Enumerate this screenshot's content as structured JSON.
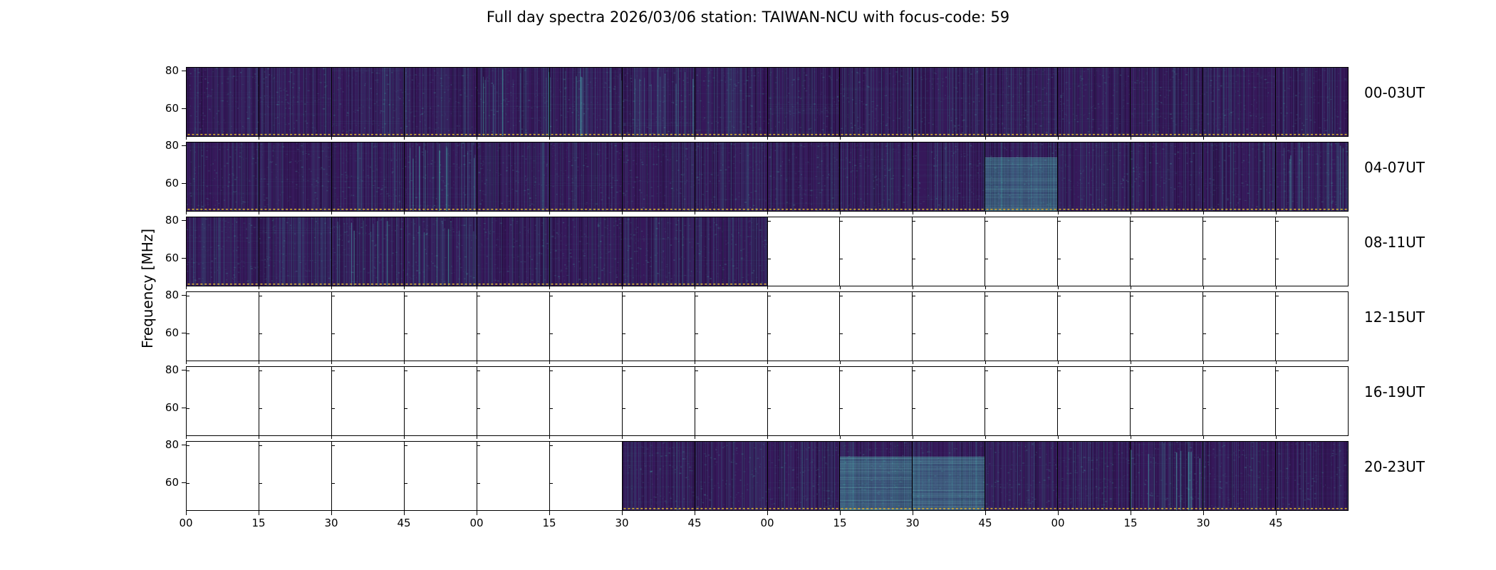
{
  "chart_data": {
    "type": "heatmap",
    "title": "Full day spectra 2026/03/06 station: TAIWAN-NCU with focus-code: 59",
    "ylabel": "Frequency [MHz]",
    "y_tick_labels": [
      "80",
      "60"
    ],
    "y_range_mhz": [
      45,
      82
    ],
    "x_tick_labels": [
      "00",
      "15",
      "30",
      "45",
      "00",
      "15",
      "30",
      "45",
      "00",
      "15",
      "30",
      "45",
      "00",
      "15",
      "30",
      "45"
    ],
    "panels_per_row": 16,
    "minutes_per_panel": 15,
    "colormap": "viridis",
    "colors": {
      "background": "#36185a",
      "activity": "#34a59e",
      "baseline_dots": "#e6bb2b",
      "empty": "#ffffff",
      "axis": "#000000"
    },
    "rows": [
      {
        "label": "00-03UT",
        "data_start": 0,
        "data_end": 16,
        "streak_panels": [
          4,
          5,
          6
        ],
        "block_panels": []
      },
      {
        "label": "04-07UT",
        "data_start": 0,
        "data_end": 16,
        "streak_panels": [
          3,
          15
        ],
        "block_panels": [
          11
        ]
      },
      {
        "label": "08-11UT",
        "data_start": 0,
        "data_end": 8,
        "streak_panels": [
          2,
          3
        ],
        "block_panels": []
      },
      {
        "label": "12-15UT",
        "data_start": 0,
        "data_end": 0,
        "streak_panels": [],
        "block_panels": []
      },
      {
        "label": "16-19UT",
        "data_start": 0,
        "data_end": 0,
        "streak_panels": [],
        "block_panels": []
      },
      {
        "label": "20-23UT",
        "data_start": 6,
        "data_end": 16,
        "streak_panels": [
          13
        ],
        "block_panels": [
          9,
          10
        ]
      }
    ]
  }
}
